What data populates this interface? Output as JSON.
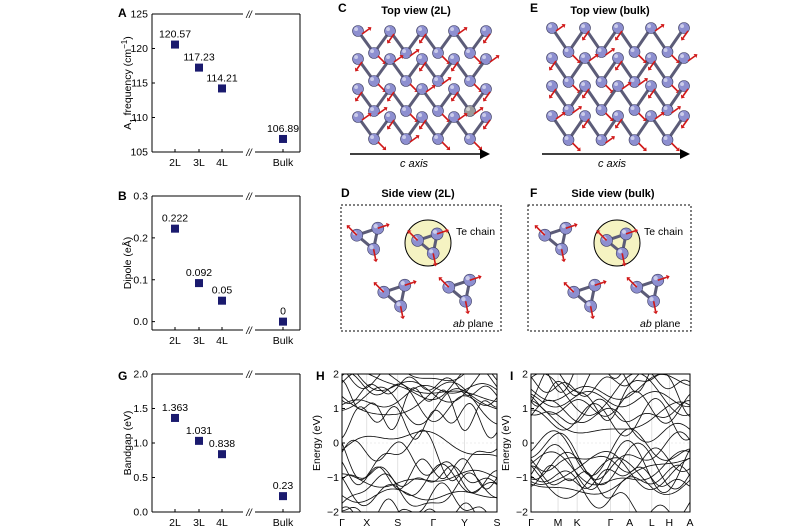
{
  "colors": {
    "marker": "#1a1a6e",
    "atom": "#8d8fd0",
    "atom_gray": "#9a9a9a",
    "bond": "#5c5c78",
    "arrow": "#d01818",
    "circle_fill": "#f5f3c2",
    "axis": "#000000"
  },
  "chart_data": [
    {
      "panel": "A",
      "type": "scatter",
      "categories": [
        "2L",
        "3L",
        "4L",
        "Bulk"
      ],
      "values": [
        120.57,
        117.23,
        114.21,
        106.89
      ],
      "value_labels": [
        "120.57",
        "117.23",
        "114.21",
        "106.89"
      ],
      "ylabel_main": "A",
      "ylabel_sub": "1",
      "ylabel_rest": " frequency (cm",
      "ylabel_sup": "−1",
      "ylabel_end": ")",
      "ylim": [
        105,
        125
      ],
      "yticks": [
        105,
        110,
        115,
        120,
        125
      ],
      "ytick_labels": [
        "105",
        "110",
        "115",
        "120",
        "125"
      ],
      "axis_break": "//"
    },
    {
      "panel": "B",
      "type": "scatter",
      "categories": [
        "2L",
        "3L",
        "4L",
        "Bulk"
      ],
      "values": [
        0.222,
        0.092,
        0.05,
        0
      ],
      "value_labels": [
        "0.222",
        "0.092",
        "0.05",
        "0"
      ],
      "ylabel": "Dipole (eÅ)",
      "ylim": [
        -0.02,
        0.3
      ],
      "yticks": [
        0.0,
        0.1,
        0.2,
        0.3
      ],
      "ytick_labels": [
        "0.0",
        "0.1",
        "0.2",
        "0.3"
      ],
      "axis_break": "//"
    },
    {
      "panel": "G",
      "type": "scatter",
      "categories": [
        "2L",
        "3L",
        "4L",
        "Bulk"
      ],
      "values": [
        1.363,
        1.031,
        0.838,
        0.23
      ],
      "value_labels": [
        "1.363",
        "1.031",
        "0.838",
        "0.23"
      ],
      "ylabel": "Bandgap (eV)",
      "ylim": [
        0.0,
        2.0
      ],
      "yticks": [
        0.0,
        0.5,
        1.0,
        1.5,
        2.0
      ],
      "ytick_labels": [
        "0.0",
        "0.5",
        "1.0",
        "1.5",
        "2.0"
      ],
      "axis_break": "//"
    },
    {
      "panel": "H",
      "type": "line",
      "ylabel": "Energy (eV)",
      "ylim": [
        -2,
        2
      ],
      "yticks": [
        -2,
        -1,
        0,
        1,
        2
      ],
      "ytick_labels": [
        "−2",
        "−1",
        "0",
        "1",
        "2"
      ],
      "kpoints": [
        "Γ",
        "X",
        "S",
        "Γ",
        "Y",
        "S"
      ],
      "kpoint_positions": [
        0,
        0.16,
        0.36,
        0.59,
        0.79,
        1.0
      ]
    },
    {
      "panel": "I",
      "type": "line",
      "ylabel": "Energy (eV)",
      "ylim": [
        -2,
        2
      ],
      "yticks": [
        -2,
        -1,
        0,
        1,
        2
      ],
      "ytick_labels": [
        "−2",
        "−1",
        "0",
        "1",
        "2"
      ],
      "kpoints": [
        "Γ",
        "M",
        "K",
        "Γ",
        "A",
        "L",
        "H",
        "A"
      ],
      "kpoint_positions": [
        0,
        0.17,
        0.29,
        0.5,
        0.62,
        0.76,
        0.87,
        1.0
      ]
    }
  ],
  "structure_panels": {
    "C": {
      "label": "C",
      "title": "Top view (2L)",
      "axis_label": "c axis"
    },
    "E": {
      "label": "E",
      "title": "Top view (bulk)",
      "axis_label": "c axis"
    },
    "D": {
      "label": "D",
      "title": "Side view (2L)",
      "chain_label": "Te chain",
      "plane_label_italic": "ab",
      "plane_label_rest": " plane"
    },
    "F": {
      "label": "F",
      "title": "Side view (bulk)",
      "chain_label": "Te chain",
      "plane_label_italic": "ab",
      "plane_label_rest": " plane"
    }
  },
  "panel_letters": {
    "A": "A",
    "B": "B",
    "G": "G",
    "H": "H",
    "I": "I"
  }
}
